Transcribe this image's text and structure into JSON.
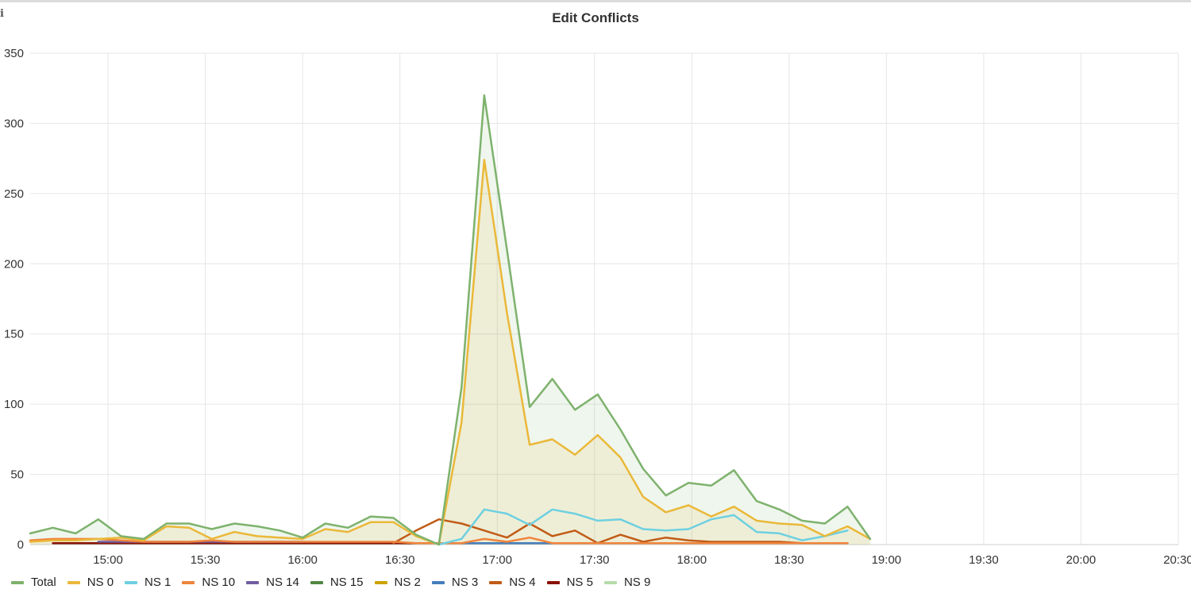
{
  "chart_data": {
    "type": "line",
    "title": "Edit Conflicts",
    "xlabel": "",
    "ylabel": "",
    "ylim": [
      0,
      350
    ],
    "yticks": [
      0,
      50,
      100,
      150,
      200,
      250,
      300,
      350
    ],
    "xlim": [
      "14:36",
      "20:30"
    ],
    "xticks": [
      "15:00",
      "15:30",
      "16:00",
      "16:30",
      "17:00",
      "17:30",
      "18:00",
      "18:30",
      "19:00",
      "19:30",
      "20:00",
      "20:30"
    ],
    "grid": true,
    "legend": "bottom-left",
    "x": [
      "14:36",
      "14:43",
      "14:50",
      "14:57",
      "15:04",
      "15:11",
      "15:18",
      "15:25",
      "15:32",
      "15:39",
      "15:46",
      "15:53",
      "16:00",
      "16:07",
      "16:14",
      "16:21",
      "16:28",
      "16:35",
      "16:42",
      "16:49",
      "16:56",
      "17:03",
      "17:10",
      "17:17",
      "17:24",
      "17:31",
      "17:38",
      "17:45",
      "17:52",
      "17:59",
      "18:06",
      "18:13",
      "18:20",
      "18:27",
      "18:34",
      "18:41",
      "18:48",
      "18:55",
      "19:02",
      "19:09",
      "19:16",
      "19:23",
      "19:30",
      "19:37",
      "19:44",
      "19:51",
      "19:58",
      "20:05",
      "20:12",
      "20:19",
      "20:26"
    ],
    "series": [
      {
        "name": "Total",
        "color": "#7eb26d",
        "filled": true,
        "values": [
          8,
          12,
          8,
          18,
          6,
          4,
          15,
          15,
          11,
          15,
          13,
          10,
          5,
          15,
          12,
          20,
          19,
          7,
          0,
          112,
          320,
          210,
          98,
          118,
          96,
          107,
          82,
          54,
          35,
          44,
          42,
          53,
          31,
          25,
          17,
          15,
          27,
          4,
          null,
          null,
          null,
          null,
          null,
          null,
          null,
          null,
          null,
          null,
          null,
          null,
          null
        ]
      },
      {
        "name": "NS 0",
        "color": "#eab839",
        "filled": true,
        "values": [
          2,
          3,
          3,
          4,
          5,
          3,
          13,
          12,
          4,
          9,
          6,
          5,
          4,
          11,
          9,
          16,
          16,
          6,
          0,
          87,
          274,
          165,
          71,
          75,
          64,
          78,
          62,
          34,
          23,
          28,
          20,
          27,
          17,
          15,
          14,
          6,
          13,
          4,
          null,
          null,
          null,
          null,
          null,
          null,
          null,
          null,
          null,
          null,
          null,
          null,
          null
        ]
      },
      {
        "name": "NS 1",
        "color": "#6ed0e0",
        "filled": false,
        "values": [
          null,
          null,
          null,
          null,
          null,
          null,
          null,
          null,
          null,
          null,
          null,
          null,
          null,
          null,
          null,
          null,
          null,
          null,
          0,
          4,
          25,
          22,
          14,
          25,
          22,
          17,
          18,
          11,
          10,
          11,
          18,
          21,
          9,
          8,
          3,
          6,
          10,
          null,
          null,
          null,
          null,
          null,
          null,
          null,
          null,
          null,
          null,
          null,
          null,
          null,
          null
        ]
      },
      {
        "name": "NS 10",
        "color": "#ef843c",
        "filled": false,
        "values": [
          3,
          4,
          4,
          4,
          3,
          2,
          2,
          2,
          3,
          2,
          2,
          2,
          2,
          2,
          2,
          2,
          2,
          1,
          1,
          1,
          4,
          2,
          5,
          1,
          1,
          1,
          1,
          1,
          1,
          1,
          1,
          1,
          1,
          1,
          1,
          1,
          1,
          null,
          null,
          null,
          null,
          null,
          null,
          null,
          null,
          null,
          null,
          null,
          null,
          null,
          null
        ]
      },
      {
        "name": "NS 14",
        "color": "#705da0",
        "filled": false,
        "values": [
          null,
          null,
          null,
          2,
          2,
          2,
          2,
          2,
          2,
          2,
          2,
          2,
          2,
          null,
          null,
          null,
          null,
          null,
          null,
          null,
          null,
          null,
          null,
          null,
          null,
          null,
          null,
          null,
          null,
          null,
          null,
          null,
          null,
          null,
          null,
          null,
          null,
          null,
          null,
          null,
          null,
          null,
          null,
          null,
          null,
          null,
          null,
          null,
          null,
          null,
          null
        ]
      },
      {
        "name": "NS 15",
        "color": "#508642",
        "filled": false,
        "values": [
          null,
          null,
          null,
          null,
          null,
          null,
          null,
          null,
          null,
          null,
          null,
          null,
          null,
          null,
          null,
          null,
          null,
          null,
          null,
          null,
          null,
          null,
          null,
          null,
          null,
          null,
          null,
          null,
          null,
          null,
          null,
          null,
          null,
          null,
          null,
          null,
          null,
          null,
          null,
          null,
          null,
          null,
          null,
          null,
          null,
          null,
          null,
          null,
          null,
          null,
          null
        ]
      },
      {
        "name": "NS 2",
        "color": "#cca300",
        "filled": false,
        "values": [
          null,
          null,
          null,
          null,
          null,
          null,
          null,
          null,
          null,
          null,
          null,
          null,
          null,
          null,
          null,
          null,
          null,
          null,
          null,
          null,
          null,
          null,
          null,
          null,
          null,
          null,
          null,
          null,
          null,
          null,
          null,
          null,
          null,
          null,
          null,
          null,
          null,
          null,
          null,
          null,
          null,
          null,
          null,
          null,
          null,
          null,
          null,
          null,
          null,
          null,
          null
        ]
      },
      {
        "name": "NS 3",
        "color": "#447ebc",
        "filled": false,
        "values": [
          null,
          null,
          null,
          null,
          null,
          null,
          null,
          null,
          null,
          null,
          null,
          null,
          null,
          null,
          null,
          null,
          null,
          null,
          1,
          1,
          1,
          1,
          1,
          1,
          1,
          1,
          1,
          1,
          1,
          1,
          1,
          1,
          1,
          1,
          1,
          1,
          1,
          null,
          null,
          null,
          null,
          null,
          null,
          null,
          null,
          null,
          null,
          null,
          null,
          null,
          null
        ]
      },
      {
        "name": "NS 4",
        "color": "#c15c17",
        "filled": false,
        "values": [
          null,
          null,
          null,
          null,
          null,
          null,
          null,
          null,
          null,
          null,
          null,
          null,
          null,
          null,
          null,
          null,
          1,
          10,
          18,
          15,
          10,
          5,
          15,
          6,
          10,
          1,
          7,
          2,
          5,
          3,
          2,
          2,
          2,
          2,
          1,
          1,
          1,
          null,
          null,
          null,
          null,
          null,
          null,
          null,
          null,
          null,
          null,
          null,
          null,
          null,
          null
        ]
      },
      {
        "name": "NS 5",
        "color": "#890f02",
        "filled": false,
        "values": [
          null,
          1,
          1,
          1,
          1,
          1,
          1,
          1,
          1,
          1,
          1,
          1,
          1,
          1,
          1,
          1,
          1,
          1,
          null,
          null,
          null,
          null,
          null,
          null,
          null,
          null,
          null,
          null,
          null,
          null,
          null,
          null,
          null,
          null,
          null,
          null,
          1,
          null,
          null,
          null,
          null,
          null,
          null,
          null,
          null,
          null,
          null,
          null,
          null,
          null,
          null
        ]
      },
      {
        "name": "NS 9",
        "color": "#b7dbab",
        "filled": false,
        "values": [
          null,
          null,
          null,
          null,
          null,
          null,
          null,
          null,
          null,
          null,
          null,
          null,
          null,
          null,
          null,
          null,
          null,
          null,
          null,
          null,
          null,
          null,
          null,
          null,
          null,
          null,
          null,
          null,
          null,
          null,
          null,
          null,
          null,
          null,
          null,
          null,
          null,
          null,
          null,
          null,
          null,
          null,
          null,
          null,
          null,
          null,
          null,
          null,
          null,
          null,
          null
        ]
      }
    ]
  }
}
